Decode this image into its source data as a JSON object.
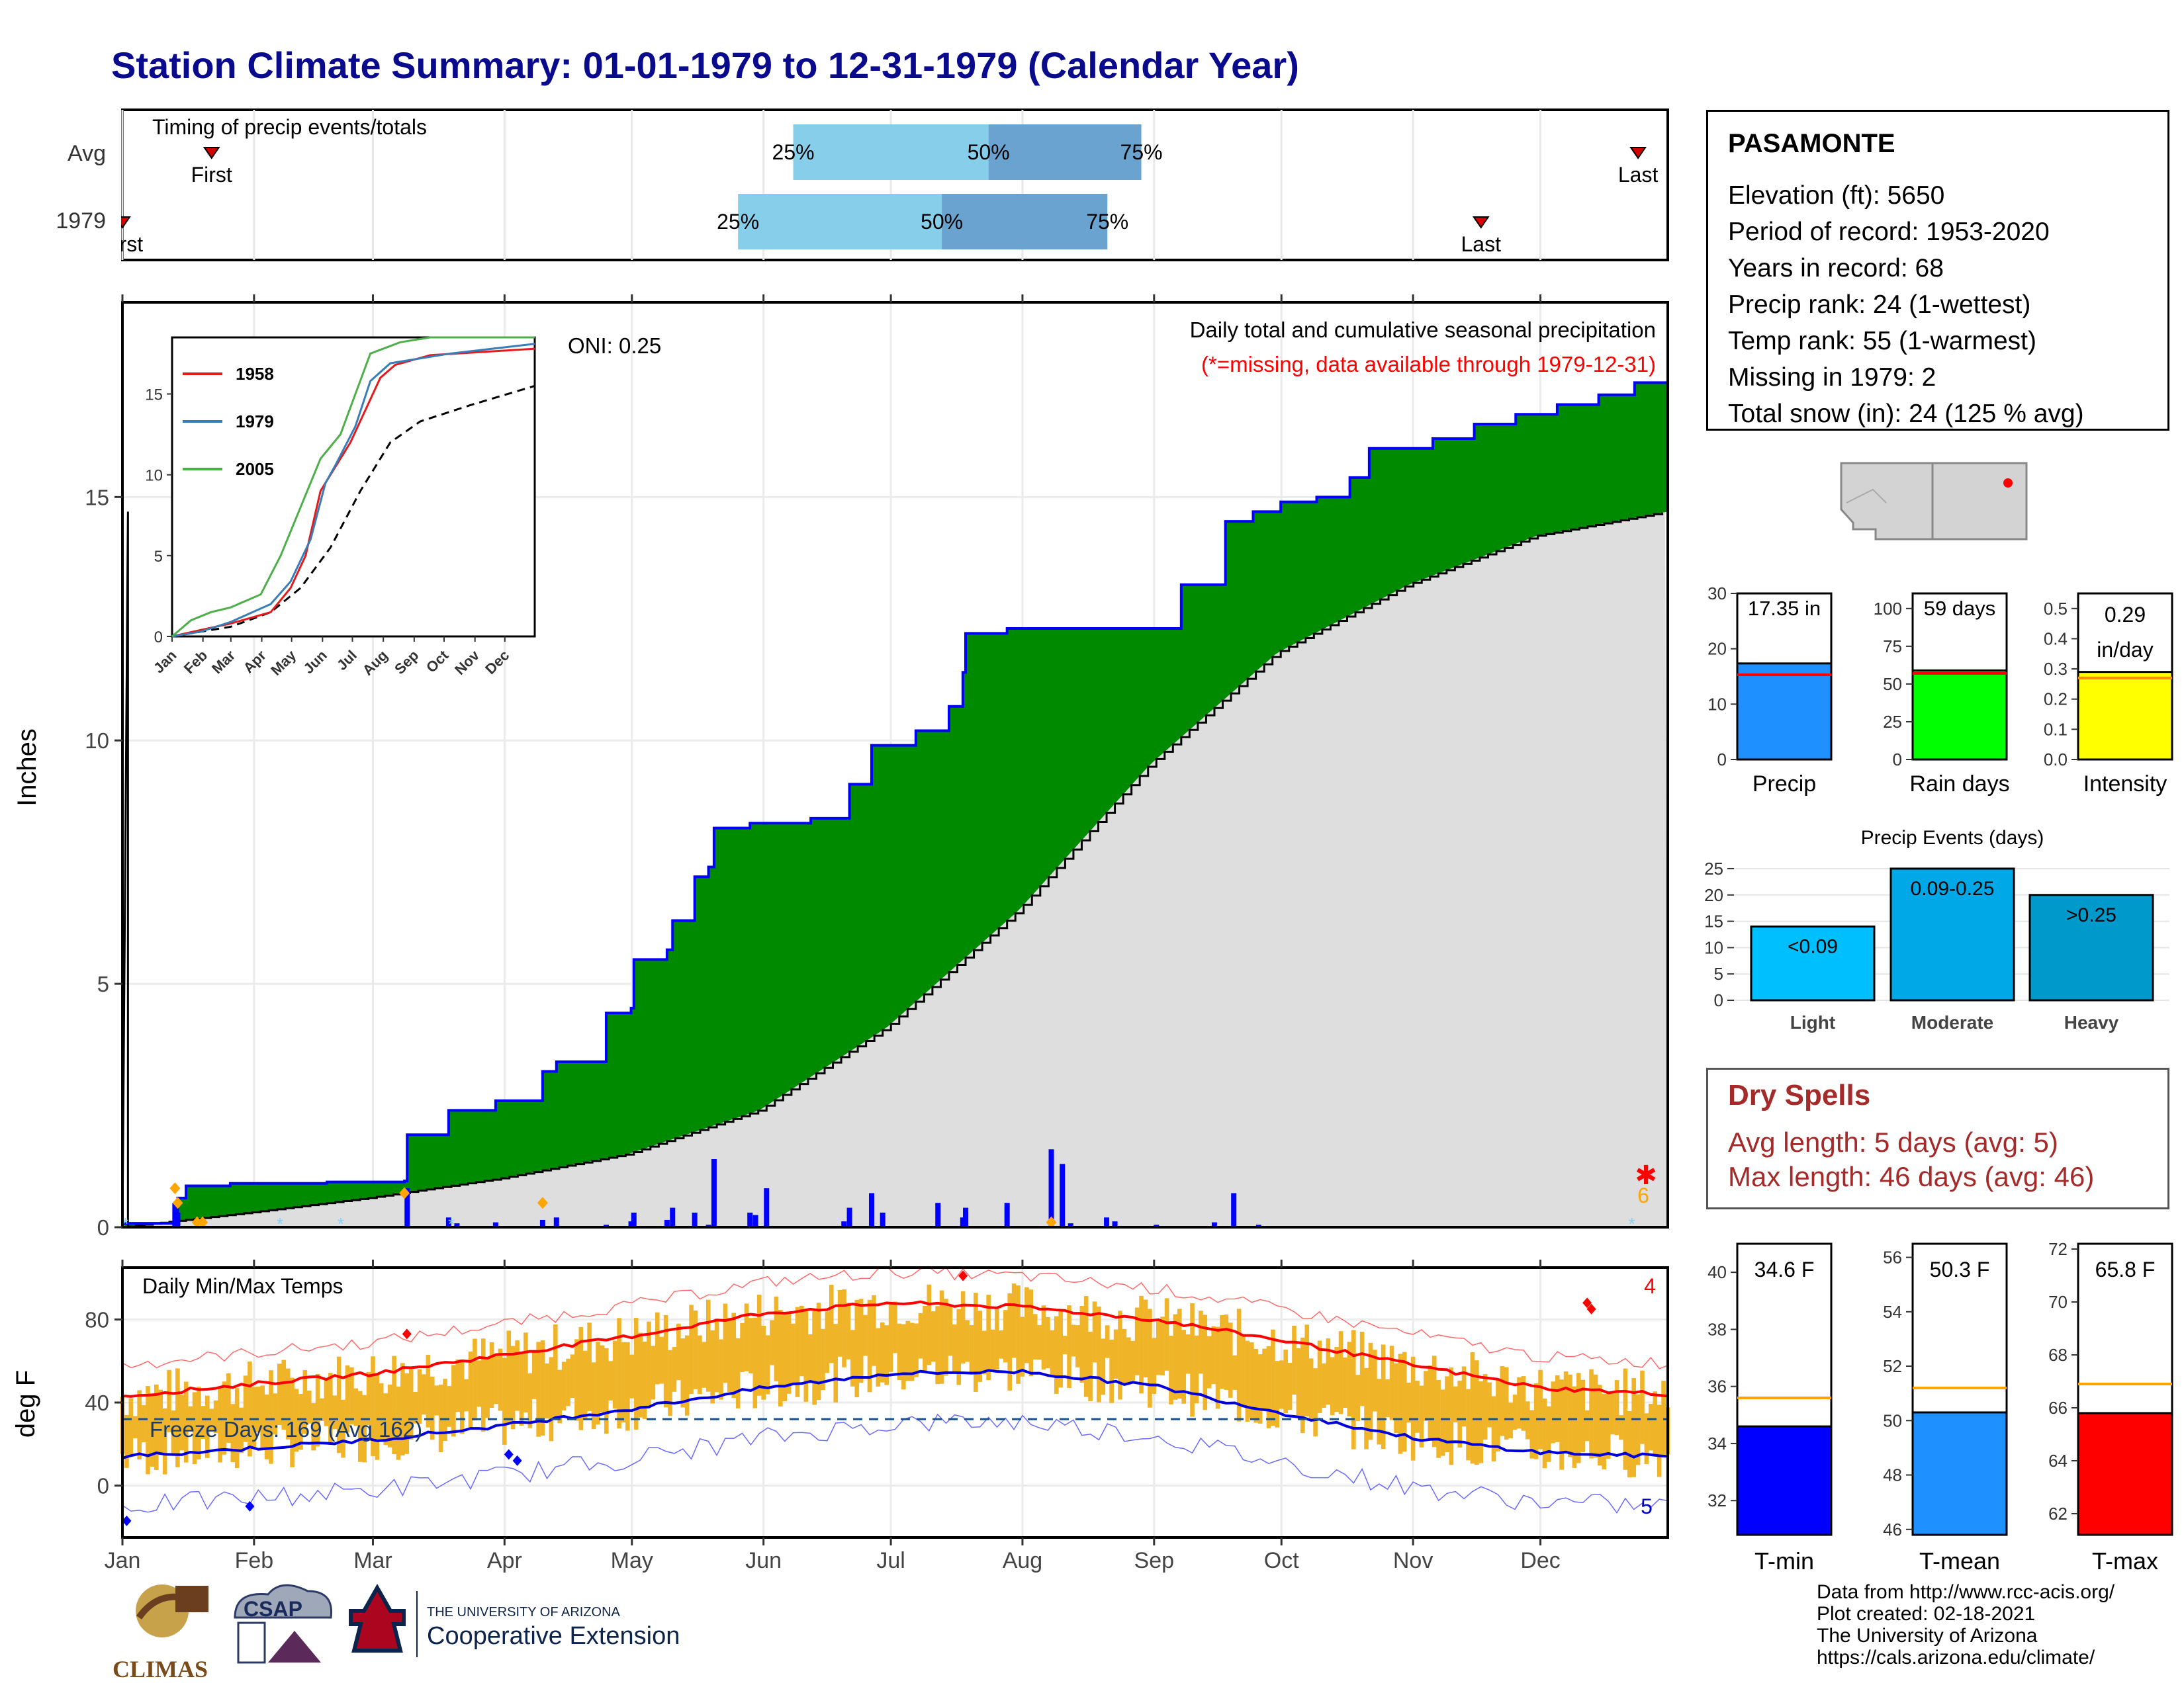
{
  "title": "Station Climate Summary: 01-01-1979 to 12-31-1979 (Calendar Year)",
  "timing_panel": {
    "label": "Timing of precip events/totals",
    "rows": [
      {
        "name": "Avg",
        "first_label": "First",
        "last_label": "Last",
        "first_day": 22,
        "last_day": 358,
        "p25": 159,
        "p50": 205,
        "p75": 241,
        "p25_label": "25%",
        "p50_label": "50%",
        "p75_label": "75%"
      },
      {
        "name": "1979",
        "first_label": "First",
        "last_label": "Last",
        "first_day": 1,
        "last_day": 321,
        "p25": 146,
        "p50": 194,
        "p75": 233,
        "p25_label": "25%",
        "p50_label": "50%",
        "p75_label": "75%"
      }
    ]
  },
  "precip_panel": {
    "title": "Daily total and cumulative seasonal precipitation",
    "missing_note": "(*=missing, data available through 1979-12-31)",
    "oni": "ONI: 0.25",
    "ylabel": "Inches",
    "missing_count": "6",
    "y_ticks": [
      "0",
      "5",
      "10",
      "15"
    ]
  },
  "inset": {
    "legend": [
      "1958",
      "1979",
      "2005"
    ],
    "colors": [
      "#e41a1c",
      "#377eb8",
      "#4daf4a"
    ],
    "y_ticks": [
      "0",
      "5",
      "10",
      "15"
    ],
    "x_ticks": [
      "Jan",
      "Feb",
      "Mar",
      "Apr",
      "May",
      "Jun",
      "Jul",
      "Aug",
      "Sep",
      "Oct",
      "Nov",
      "Dec"
    ]
  },
  "temp_panel": {
    "title": "Daily Min/Max Temps",
    "ylabel": "deg F",
    "freeze_label": "Freeze Days: 169 (Avg 162)",
    "record_high_count": "4",
    "record_low_count": "5",
    "y_ticks": [
      "0",
      "40",
      "80"
    ]
  },
  "months": [
    "Jan",
    "Feb",
    "Mar",
    "Apr",
    "May",
    "Jun",
    "Jul",
    "Aug",
    "Sep",
    "Oct",
    "Nov",
    "Dec"
  ],
  "station_info": {
    "name": "PASAMONTE",
    "rows": [
      "Elevation (ft): 5650",
      "Period of record: 1953-2020",
      "Years in record: 68",
      "Precip rank: 24 (1-wettest)",
      "Temp rank: 55 (1-warmest)",
      "Missing in 1979: 2",
      "Total snow (in): 24 (125 % avg)"
    ]
  },
  "gauges": [
    {
      "label": "Precip",
      "value_text": "17.35 in",
      "value": 17.35,
      "avg": 15.3,
      "min": 0,
      "max": 30,
      "ticks": [
        "0",
        "10",
        "20",
        "30"
      ],
      "color": "#1e90ff"
    },
    {
      "label": "Rain days",
      "value_text": "59 days",
      "value": 59,
      "avg": 57,
      "min": 0,
      "max": 110,
      "ticks": [
        "0",
        "25",
        "50",
        "75",
        "100"
      ],
      "color": "#00ff00"
    },
    {
      "label": "Intensity",
      "value_text_1": "0.29",
      "value_text_2": "in/day",
      "value": 0.29,
      "avg": 0.27,
      "min": 0,
      "max": 0.55,
      "ticks": [
        "0.0",
        "0.1",
        "0.2",
        "0.3",
        "0.4",
        "0.5"
      ],
      "color": "#ffff00"
    }
  ],
  "precip_events": {
    "title": "Precip Events (days)",
    "categories": [
      "Light",
      "Moderate",
      "Heavy"
    ],
    "bar_labels": [
      "<0.09",
      "0.09-0.25",
      ">0.25"
    ],
    "values": [
      14,
      25,
      20
    ],
    "colors": [
      "#00bfff",
      "#00a8e8",
      "#0099cc"
    ],
    "ticks": [
      "0",
      "5",
      "10",
      "15",
      "20",
      "25"
    ]
  },
  "dry_spells": {
    "title": "Dry Spells",
    "avg": "Avg length: 5 days (avg: 5)",
    "max": "Max length: 46 days (avg: 46)"
  },
  "temp_gauges": [
    {
      "label": "T-min",
      "value_text": "34.6 F",
      "value": 34.6,
      "avg": 35.6,
      "min": 30.8,
      "max": 41,
      "ticks": [
        "32",
        "34",
        "36",
        "38",
        "40"
      ],
      "color": "#0000ff"
    },
    {
      "label": "T-mean",
      "value_text": "50.3 F",
      "value": 50.3,
      "avg": 51.2,
      "min": 45.8,
      "max": 56.5,
      "ticks": [
        "46",
        "48",
        "50",
        "52",
        "54",
        "56"
      ],
      "color": "#1e90ff"
    },
    {
      "label": "T-max",
      "value_text": "65.8 F",
      "value": 65.8,
      "avg": 66.9,
      "min": 61.2,
      "max": 72.2,
      "ticks": [
        "62",
        "64",
        "66",
        "68",
        "70",
        "72"
      ],
      "color": "#ff0000"
    }
  ],
  "credits": [
    "Data from http://www.rcc-acis.org/",
    "Plot created: 02-18-2021",
    "The University of Arizona",
    "https://cals.arizona.edu/climate/"
  ],
  "logos": {
    "climas": "CLIMAS",
    "csap": "CSAP",
    "ua_line1": "THE UNIVERSITY OF ARIZONA",
    "ua_line2": "Cooperative Extension"
  },
  "chart_data": [
    {
      "type": "area",
      "title": "Daily total and cumulative seasonal precipitation",
      "ylabel": "Inches",
      "ylim": [
        0,
        19
      ],
      "cumulative_1979": [
        [
          1,
          0.08
        ],
        [
          20,
          0.08
        ],
        [
          21,
          0.6
        ],
        [
          24,
          0.85
        ],
        [
          40,
          0.9
        ],
        [
          75,
          0.93
        ],
        [
          103,
          0.95
        ],
        [
          104,
          1.9
        ],
        [
          118,
          1.9
        ],
        [
          119,
          2.4
        ],
        [
          135,
          2.4
        ],
        [
          136,
          2.6
        ],
        [
          150,
          2.6
        ],
        [
          153,
          3.2
        ],
        [
          158,
          3.4
        ],
        [
          175,
          3.4
        ],
        [
          176,
          4.4
        ],
        [
          185,
          4.5
        ],
        [
          186,
          5.5
        ],
        [
          198,
          5.7
        ],
        [
          200,
          6.3
        ],
        [
          207,
          6.3
        ],
        [
          208,
          7.2
        ],
        [
          213,
          7.4
        ],
        [
          215,
          8.2
        ],
        [
          228,
          8.3
        ],
        [
          250,
          8.4
        ],
        [
          262,
          8.4
        ],
        [
          264,
          9.1
        ],
        [
          270,
          9.1
        ],
        [
          272,
          9.9
        ],
        [
          288,
          10.2
        ],
        [
          300,
          10.7
        ],
        [
          305,
          11.4
        ],
        [
          306,
          12.2
        ],
        [
          321,
          12.3
        ],
        [
          335,
          12.3
        ],
        [
          360,
          12.3
        ],
        [
          378,
          12.3
        ],
        [
          384,
          13.2
        ],
        [
          400,
          14.5
        ],
        [
          410,
          14.7
        ],
        [
          420,
          14.9
        ],
        [
          433,
          15.0
        ],
        [
          445,
          15.4
        ],
        [
          452,
          16.0
        ],
        [
          475,
          16.2
        ],
        [
          490,
          16.5
        ],
        [
          505,
          16.7
        ],
        [
          520,
          16.9
        ],
        [
          535,
          17.1
        ],
        [
          548,
          17.35
        ],
        [
          560,
          17.35
        ]
      ],
      "cumulative_avg": [
        [
          1,
          0
        ],
        [
          31,
          0.3
        ],
        [
          59,
          0.6
        ],
        [
          90,
          1.0
        ],
        [
          120,
          1.5
        ],
        [
          151,
          2.4
        ],
        [
          181,
          4.1
        ],
        [
          212,
          6.5
        ],
        [
          243,
          9.5
        ],
        [
          273,
          11.8
        ],
        [
          304,
          13.2
        ],
        [
          334,
          14.2
        ],
        [
          365,
          14.7
        ]
      ],
      "daily_1979": [
        [
          10,
          0.02
        ],
        [
          20,
          0.5
        ],
        [
          21,
          0.3
        ],
        [
          104,
          0.8
        ],
        [
          119,
          0.2
        ],
        [
          122,
          0.08
        ],
        [
          136,
          0.1
        ],
        [
          153,
          0.15
        ],
        [
          158,
          0.2
        ],
        [
          176,
          0.05
        ],
        [
          185,
          0.12
        ],
        [
          186,
          0.3
        ],
        [
          198,
          0.15
        ],
        [
          200,
          0.4
        ],
        [
          208,
          0.3
        ],
        [
          213,
          0.05
        ],
        [
          215,
          1.4
        ],
        [
          228,
          0.3
        ],
        [
          230,
          0.25
        ],
        [
          234,
          0.8
        ],
        [
          262,
          0.12
        ],
        [
          264,
          0.4
        ],
        [
          272,
          0.7
        ],
        [
          276,
          0.3
        ],
        [
          296,
          0.5
        ],
        [
          305,
          0.2
        ],
        [
          306,
          0.4
        ],
        [
          321,
          0.5
        ],
        [
          337,
          1.6
        ],
        [
          341,
          1.3
        ],
        [
          344,
          0.08
        ],
        [
          357,
          0.2
        ],
        [
          360,
          0.12
        ],
        [
          375,
          0.05
        ],
        [
          396,
          0.1
        ],
        [
          403,
          0.7
        ],
        [
          412,
          0.05
        ]
      ]
    },
    {
      "type": "line",
      "title": "Daily Min/Max Temps",
      "ylabel": "deg F",
      "ylim": [
        -25,
        105
      ],
      "avg_max": [
        [
          1,
          43
        ],
        [
          32,
          49
        ],
        [
          60,
          54
        ],
        [
          91,
          63
        ],
        [
          121,
          72
        ],
        [
          152,
          83
        ],
        [
          182,
          88
        ],
        [
          213,
          86
        ],
        [
          244,
          80
        ],
        [
          274,
          70
        ],
        [
          305,
          58
        ],
        [
          335,
          47
        ],
        [
          365,
          44
        ]
      ],
      "avg_min": [
        [
          1,
          14
        ],
        [
          32,
          18
        ],
        [
          60,
          22
        ],
        [
          91,
          29
        ],
        [
          121,
          37
        ],
        [
          152,
          47
        ],
        [
          182,
          54
        ],
        [
          213,
          55
        ],
        [
          244,
          48
        ],
        [
          274,
          35
        ],
        [
          305,
          23
        ],
        [
          335,
          16
        ],
        [
          365,
          14
        ]
      ],
      "freeze_line": 32
    }
  ]
}
